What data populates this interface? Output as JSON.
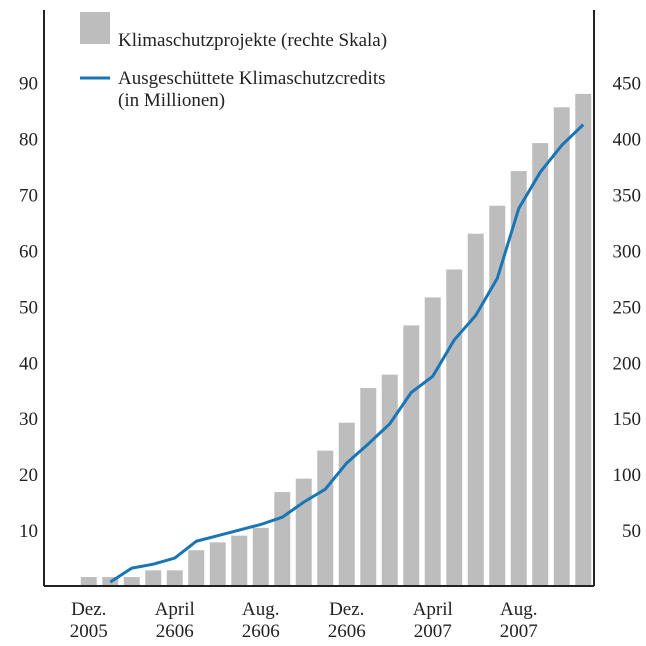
{
  "chart_data": {
    "type": "bar_line",
    "categories": [
      "Dez.\n2005",
      null,
      null,
      null,
      "April\n2606",
      null,
      null,
      null,
      "Aug.\n2606",
      null,
      null,
      null,
      "Dez.\n2606",
      null,
      null,
      null,
      "April\n2007",
      null,
      null,
      null,
      "Aug.\n2007",
      null,
      null,
      null
    ],
    "series": [
      {
        "name": "Klimaschutzprojekte (rechte Skala)",
        "type": "bar",
        "axis": "y2",
        "color": "#bdbdbd",
        "values": [
          8,
          8,
          8,
          14,
          14,
          32,
          39,
          45,
          52,
          84,
          96,
          121,
          146,
          177,
          189,
          233,
          258,
          283,
          315,
          340,
          371,
          396,
          428,
          440
        ]
      },
      {
        "name": "Ausgeschüttete Klimaschutzcredits\n(in Millionen)",
        "type": "line",
        "axis": "y",
        "color": "#1a75b5",
        "values": [
          null,
          0.7,
          3.2,
          3.9,
          5,
          8,
          9,
          10,
          11,
          12.3,
          15,
          17.3,
          22,
          25.4,
          29,
          34.6,
          37.5,
          44,
          48.4,
          55,
          67.5,
          74,
          78.8,
          82.5
        ]
      }
    ],
    "ylim": [
      0,
      103
    ],
    "yticks": [
      10,
      20,
      30,
      40,
      50,
      60,
      70,
      80,
      90
    ],
    "y2lim": [
      0,
      515
    ],
    "y2ticks": [
      50,
      100,
      150,
      200,
      250,
      300,
      350,
      400,
      450
    ]
  }
}
